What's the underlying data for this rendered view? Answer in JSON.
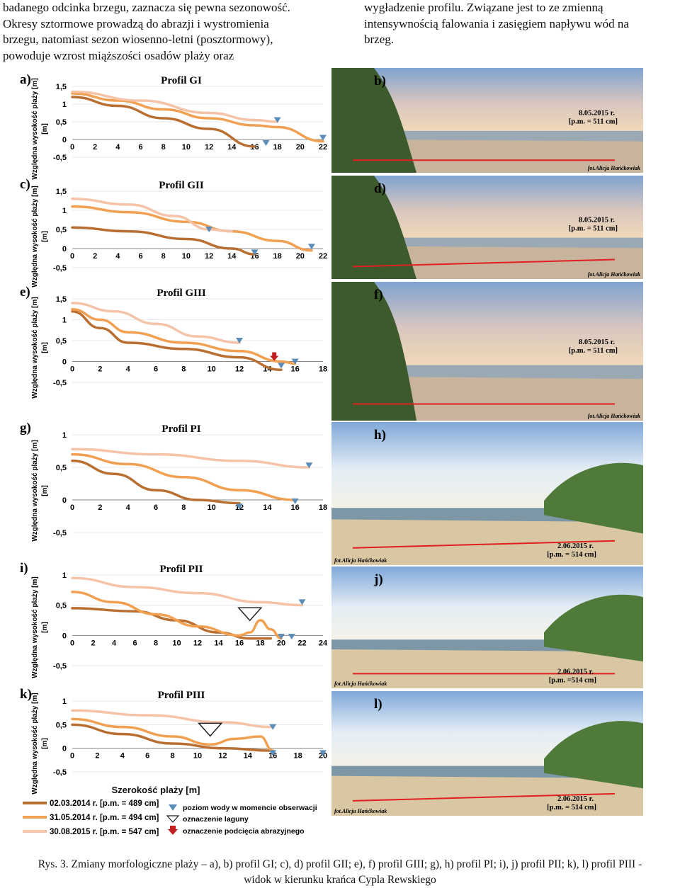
{
  "text": {
    "left_lines": [
      "badanego odcinka brzegu, zaznacza się pewna sezonowość.",
      "Okresy sztormowe prowadzą do abrazji i wystromienia",
      "brzegu, natomiast sezon wiosenno-letni (posztormowy),",
      "powoduje wzrost miąższości osadów plaży oraz"
    ],
    "right_lines": [
      "wygładzenie profilu. Związane jest to ze zmienną",
      "intensywnością falowania i zasięgiem napływu wód na",
      "brzeg."
    ]
  },
  "caption": {
    "line1": "Rys. 3. Zmiany morfologiczne plaży – a), b) profil GI; c), d) profil GII; e), f) profil GIII; g), h) profil PI; i), j) profil PII; k), l) profil PIII -",
    "line2": "widok w kierunku krańca Cypla Rewskiego"
  },
  "colors": {
    "series_2014_03": "#b96f32",
    "series_2014_05": "#f0a050",
    "series_2015_08": "#f4c3a8",
    "water_marker": "#5b8db8",
    "abrasion_marker": "#c22020",
    "redline": "#e02020"
  },
  "shared": {
    "ylabel": "Względna wysokość plaży [m]",
    "xlabel": "Szerokość plaży [m]"
  },
  "legend": {
    "series": [
      "02.03.2014 r. [p.m. = 489 cm]",
      "31.05.2014 r. [p.m. = 494 cm]",
      "30.08.2015 r. [p.m. = 547 cm]"
    ],
    "symbols": [
      "poziom wody w momencie obserwacji",
      "oznaczenie laguny",
      "oznaczenie podcięcia abrazyjnego"
    ]
  },
  "chart_data": [
    {
      "panel": "a)",
      "type": "line",
      "title": "Profil GI",
      "x_ticks": [
        "0",
        "2",
        "4",
        "6",
        "8",
        "10",
        "12",
        "14",
        "16",
        "18",
        "20",
        "22"
      ],
      "y_ticks": [
        "1,5",
        "1",
        "0,5",
        "0",
        "-0,5"
      ],
      "xlim": [
        0,
        22
      ],
      "ylim": [
        -0.5,
        1.5
      ],
      "series": [
        {
          "name": "02.03.2014 r. [p.m. = 489 cm]",
          "points": [
            [
              0,
              1.2
            ],
            [
              4,
              0.95
            ],
            [
              8,
              0.6
            ],
            [
              12,
              0.3
            ],
            [
              16,
              -0.2
            ]
          ]
        },
        {
          "name": "31.05.2014 r. [p.m. = 494 cm]",
          "points": [
            [
              0,
              1.3
            ],
            [
              4,
              1.1
            ],
            [
              8,
              0.85
            ],
            [
              12,
              0.6
            ],
            [
              16,
              0.4
            ],
            [
              18,
              0.35
            ],
            [
              22,
              -0.05
            ]
          ]
        },
        {
          "name": "30.08.2015 r. [p.m. = 547 cm]",
          "points": [
            [
              0,
              1.35
            ],
            [
              6,
              1.1
            ],
            [
              12,
              0.75
            ],
            [
              16,
              0.55
            ],
            [
              18,
              0.5
            ]
          ]
        }
      ],
      "water_markers": [
        [
          17,
          -0.1
        ],
        [
          18,
          0.55
        ],
        [
          22,
          0.05
        ]
      ],
      "lagoon_markers": [],
      "abrasion_markers": []
    },
    {
      "panel": "c)",
      "type": "line",
      "title": "Profil GII",
      "x_ticks": [
        "0",
        "2",
        "4",
        "6",
        "8",
        "10",
        "12",
        "14",
        "16",
        "18",
        "20",
        "22"
      ],
      "y_ticks": [
        "1,5",
        "1",
        "0,5",
        "0",
        "-0,5"
      ],
      "xlim": [
        0,
        22
      ],
      "ylim": [
        -0.5,
        1.5
      ],
      "series": [
        {
          "name": "02.03.2014 r. [p.m. = 489 cm]",
          "points": [
            [
              0,
              0.55
            ],
            [
              5,
              0.45
            ],
            [
              10,
              0.25
            ],
            [
              14,
              0.0
            ],
            [
              16,
              -0.15
            ]
          ]
        },
        {
          "name": "31.05.2014 r. [p.m. = 494 cm]",
          "points": [
            [
              0,
              1.1
            ],
            [
              5,
              0.95
            ],
            [
              10,
              0.7
            ],
            [
              14,
              0.45
            ],
            [
              18,
              0.2
            ],
            [
              21,
              -0.05
            ]
          ]
        },
        {
          "name": "30.08.2015 r. [p.m. = 547 cm]",
          "points": [
            [
              0,
              1.3
            ],
            [
              5,
              1.15
            ],
            [
              9,
              0.85
            ],
            [
              12,
              0.5
            ],
            [
              14,
              0.45
            ]
          ]
        }
      ],
      "water_markers": [
        [
          12,
          0.5
        ],
        [
          16,
          -0.1
        ],
        [
          21,
          0.05
        ]
      ],
      "lagoon_markers": [],
      "abrasion_markers": []
    },
    {
      "panel": "e)",
      "type": "line",
      "title": "Profil GIII",
      "x_ticks": [
        "0",
        "2",
        "4",
        "6",
        "8",
        "10",
        "12",
        "14",
        "16",
        "18"
      ],
      "y_ticks": [
        "1,5",
        "1",
        "0,5",
        "0",
        "-0,5"
      ],
      "xlim": [
        0,
        18
      ],
      "ylim": [
        -0.5,
        1.5
      ],
      "series": [
        {
          "name": "02.03.2014 r. [p.m. = 489 cm]",
          "points": [
            [
              0,
              1.2
            ],
            [
              2,
              0.8
            ],
            [
              4,
              0.45
            ],
            [
              8,
              0.3
            ],
            [
              12,
              0.1
            ],
            [
              15,
              -0.2
            ]
          ]
        },
        {
          "name": "31.05.2014 r. [p.m. = 494 cm]",
          "points": [
            [
              0,
              1.25
            ],
            [
              2,
              1.0
            ],
            [
              4,
              0.7
            ],
            [
              8,
              0.45
            ],
            [
              12,
              0.25
            ],
            [
              15,
              0.0
            ],
            [
              16,
              -0.05
            ]
          ]
        },
        {
          "name": "30.08.2015 r. [p.m. = 547 cm]",
          "points": [
            [
              0,
              1.4
            ],
            [
              3,
              1.2
            ],
            [
              6,
              0.9
            ],
            [
              9,
              0.6
            ],
            [
              12,
              0.45
            ]
          ]
        }
      ],
      "water_markers": [
        [
          12,
          0.5
        ],
        [
          15,
          -0.1
        ],
        [
          16,
          0.0
        ]
      ],
      "lagoon_markers": [],
      "abrasion_markers": [
        [
          14.5,
          0.05
        ]
      ]
    },
    {
      "panel": "g)",
      "type": "line",
      "title": "Profil PI",
      "x_ticks": [
        "0",
        "2",
        "4",
        "6",
        "8",
        "10",
        "12",
        "14",
        "16",
        "18"
      ],
      "y_ticks": [
        "1",
        "0,5",
        "0",
        "-0,5"
      ],
      "xlim": [
        0,
        18
      ],
      "ylim": [
        -0.5,
        1
      ],
      "series": [
        {
          "name": "02.03.2014 r. [p.m. = 489 cm]",
          "points": [
            [
              0,
              0.6
            ],
            [
              3,
              0.4
            ],
            [
              6,
              0.15
            ],
            [
              9,
              0.0
            ],
            [
              12,
              -0.05
            ]
          ]
        },
        {
          "name": "31.05.2014 r. [p.m. = 494 cm]",
          "points": [
            [
              0,
              0.7
            ],
            [
              4,
              0.55
            ],
            [
              8,
              0.35
            ],
            [
              12,
              0.15
            ],
            [
              16,
              0.0
            ]
          ]
        },
        {
          "name": "30.08.2015 r. [p.m. = 547 cm]",
          "points": [
            [
              0,
              0.78
            ],
            [
              6,
              0.7
            ],
            [
              12,
              0.6
            ],
            [
              17,
              0.5
            ]
          ]
        }
      ],
      "water_markers": [
        [
          12,
          -0.1
        ],
        [
          16,
          -0.02
        ],
        [
          17,
          0.53
        ]
      ],
      "lagoon_markers": [],
      "abrasion_markers": []
    },
    {
      "panel": "i)",
      "type": "line",
      "title": "Profil PII",
      "x_ticks": [
        "0",
        "2",
        "4",
        "6",
        "8",
        "10",
        "12",
        "14",
        "16",
        "18",
        "20",
        "22",
        "24"
      ],
      "y_ticks": [
        "1",
        "0,5",
        "0",
        "-0,5"
      ],
      "xlim": [
        0,
        24
      ],
      "ylim": [
        -0.5,
        1
      ],
      "series": [
        {
          "name": "02.03.2014 r. [p.m. = 489 cm]",
          "points": [
            [
              0,
              0.45
            ],
            [
              6,
              0.4
            ],
            [
              10,
              0.25
            ],
            [
              14,
              0.05
            ],
            [
              17,
              -0.05
            ],
            [
              19,
              -0.05
            ]
          ]
        },
        {
          "name": "31.05.2014 r. [p.m. = 494 cm]",
          "points": [
            [
              0,
              0.72
            ],
            [
              4,
              0.55
            ],
            [
              8,
              0.35
            ],
            [
              12,
              0.15
            ],
            [
              16,
              0.0
            ],
            [
              17,
              0.05
            ],
            [
              18,
              0.25
            ],
            [
              19,
              0.1
            ],
            [
              20,
              -0.05
            ]
          ]
        },
        {
          "name": "30.08.2015 r. [p.m. = 547 cm]",
          "points": [
            [
              0,
              0.95
            ],
            [
              6,
              0.8
            ],
            [
              12,
              0.7
            ],
            [
              18,
              0.55
            ],
            [
              22,
              0.5
            ]
          ]
        }
      ],
      "water_markers": [
        [
          20,
          -0.02
        ],
        [
          21,
          -0.02
        ],
        [
          22,
          0.55
        ]
      ],
      "lagoon_markers": [
        [
          17,
          0.2
        ]
      ],
      "abrasion_markers": []
    },
    {
      "panel": "k)",
      "type": "line",
      "title": "Profil PIII",
      "x_ticks": [
        "0",
        "2",
        "4",
        "6",
        "8",
        "10",
        "12",
        "14",
        "16",
        "18",
        "20"
      ],
      "y_ticks": [
        "1",
        "0,5",
        "0",
        "-0,5"
      ],
      "xlim": [
        0,
        20
      ],
      "ylim": [
        -0.5,
        1
      ],
      "series": [
        {
          "name": "02.03.2014 r. [p.m. = 489 cm]",
          "points": [
            [
              0,
              0.5
            ],
            [
              4,
              0.3
            ],
            [
              8,
              0.1
            ],
            [
              12,
              0.0
            ],
            [
              16,
              -0.05
            ]
          ]
        },
        {
          "name": "31.05.2014 r. [p.m. = 494 cm]",
          "points": [
            [
              0,
              0.62
            ],
            [
              4,
              0.45
            ],
            [
              8,
              0.25
            ],
            [
              11,
              0.08
            ],
            [
              13,
              0.2
            ],
            [
              15,
              0.25
            ],
            [
              16,
              -0.05
            ]
          ]
        },
        {
          "name": "30.08.2015 r. [p.m. = 547 cm]",
          "points": [
            [
              0,
              0.8
            ],
            [
              6,
              0.7
            ],
            [
              12,
              0.55
            ],
            [
              16,
              0.45
            ]
          ]
        }
      ],
      "water_markers": [
        [
          16,
          0.45
        ],
        [
          16,
          -0.1
        ],
        [
          20,
          -0.1
        ]
      ],
      "lagoon_markers": [
        [
          11,
          0.2
        ]
      ],
      "abrasion_markers": []
    }
  ],
  "photos": [
    {
      "panel": "b)",
      "date": "8.05.2015 r.",
      "pm": "[p.m. = 511 cm]",
      "credit": "fot.Alicja Hańćkowiak"
    },
    {
      "panel": "d)",
      "date": "8.05.2015 r.",
      "pm": "[p.m. = 511 cm]",
      "credit": "fot.Alicja Hańćkowiak"
    },
    {
      "panel": "f)",
      "date": "8.05.2015 r.",
      "pm": "[p.m. = 511 cm]",
      "credit": "fot.Alicja Hańćkowiak"
    },
    {
      "panel": "h)",
      "date": "2.06.2015 r.",
      "pm": "[p.m. = 514 cm]",
      "credit": "fot.Alicja Hańćkowiak"
    },
    {
      "panel": "j)",
      "date": "2.06.2015 r.",
      "pm": "[p.m. =514 cm]",
      "credit": "fot.Alicja Hańćkowiak"
    },
    {
      "panel": "l)",
      "date": "2.06.2015 r.",
      "pm": "[p.m. = 514 cm]",
      "credit": "fot.Alicja Hańćkowiak"
    }
  ]
}
